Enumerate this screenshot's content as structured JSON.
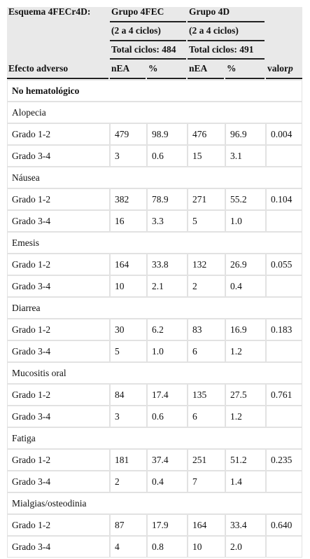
{
  "header": {
    "scheme": "Esquema 4FECr4D:",
    "groups": [
      {
        "name": "Grupo 4FEC",
        "cycles": "(2 a 4 ciclos)",
        "total": "Total ciclos: 484"
      },
      {
        "name": "Grupo 4D",
        "cycles": "(2 a 4 ciclos)",
        "total": "Total ciclos: 491"
      }
    ],
    "columns": [
      "Efecto adverso",
      "nEA",
      "%",
      "nEA",
      "%"
    ],
    "p_label": "valor",
    "p_symbol": "p"
  },
  "table": {
    "section": "No hematológico",
    "groups": [
      {
        "name": "Alopecia",
        "rows": [
          {
            "grade": "Grado 1-2",
            "values": [
              "479",
              "98.9",
              "476",
              "96.9",
              "0.004"
            ]
          },
          {
            "grade": "Grado 3-4",
            "values": [
              "3",
              "0.6",
              "15",
              "3.1"
            ]
          }
        ]
      },
      {
        "name": "Náusea",
        "rows": [
          {
            "grade": "Grado 1-2",
            "values": [
              "382",
              "78.9",
              "271",
              "55.2",
              "0.104"
            ]
          },
          {
            "grade": "Grado 3-4",
            "values": [
              "16",
              "3.3",
              "5",
              "1.0"
            ]
          }
        ]
      },
      {
        "name": "Emesis",
        "rows": [
          {
            "grade": "Grado 1-2",
            "values": [
              "164",
              "33.8",
              "132",
              "26.9",
              "0.055"
            ]
          },
          {
            "grade": "Grado 3-4",
            "values": [
              "10",
              "2.1",
              "2",
              "0.4"
            ]
          }
        ]
      },
      {
        "name": "Diarrea",
        "rows": [
          {
            "grade": "Grado 1-2",
            "values": [
              "30",
              "6.2",
              "83",
              "16.9",
              "0.183"
            ]
          },
          {
            "grade": "Grado 3-4",
            "values": [
              "5",
              "1.0",
              "6",
              "1.2"
            ]
          }
        ]
      },
      {
        "name": "Mucositis oral",
        "rows": [
          {
            "grade": "Grado 1-2",
            "values": [
              "84",
              "17.4",
              "135",
              "27.5",
              "0.761"
            ]
          },
          {
            "grade": "Grado 3-4",
            "values": [
              "3",
              "0.6",
              "6",
              "1.2"
            ]
          }
        ]
      },
      {
        "name": "Fatiga",
        "rows": [
          {
            "grade": "Grado 1-2",
            "values": [
              "181",
              "37.4",
              "251",
              "51.2",
              "0.235"
            ]
          },
          {
            "grade": "Grado 3-4",
            "values": [
              "2",
              "0.4",
              "7",
              "1.4"
            ]
          }
        ]
      },
      {
        "name": "Mialgias/osteodinia",
        "rows": [
          {
            "grade": "Grado 1-2",
            "values": [
              "87",
              "17.9",
              "164",
              "33.4",
              "0.640"
            ]
          },
          {
            "grade": "Grado 3-4",
            "values": [
              "4",
              "0.8",
              "10",
              "2.0"
            ]
          }
        ]
      }
    ]
  }
}
